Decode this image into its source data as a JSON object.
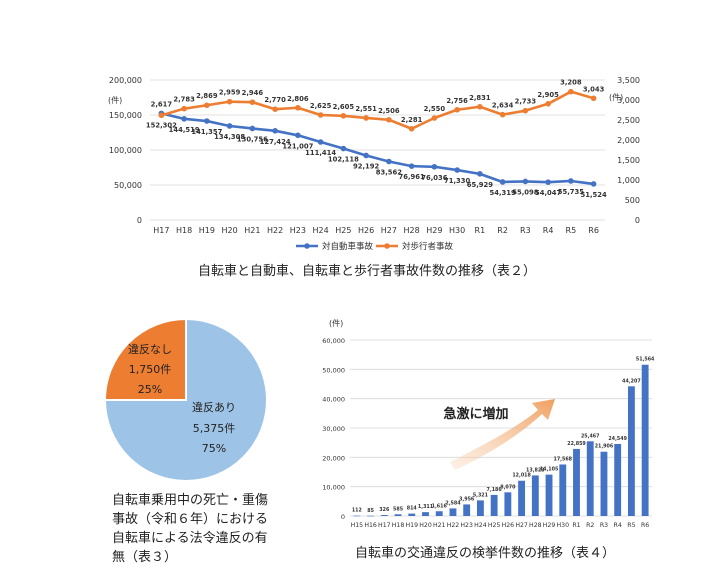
{
  "chart_data": [
    {
      "type": "line",
      "title": "自転車と自動車、自転車と歩行者事故件数の推移（表２）",
      "left_unit": "(件)",
      "right_unit": "(件)",
      "categories": [
        "H17",
        "H18",
        "H19",
        "H20",
        "H21",
        "H22",
        "H23",
        "H24",
        "H25",
        "H26",
        "H27",
        "H28",
        "H29",
        "H30",
        "R1",
        "R2",
        "R3",
        "R4",
        "R5",
        "R6"
      ],
      "left_ylim": [
        0,
        200000
      ],
      "left_ticks": [
        "0",
        "50,000",
        "100,000",
        "150,000",
        "200,000"
      ],
      "right_ylim": [
        0,
        3500
      ],
      "right_ticks": [
        "0",
        "500",
        "1,000",
        "1,500",
        "2,000",
        "2,500",
        "3,000",
        "3,500"
      ],
      "series": [
        {
          "name": "対自動車事故",
          "axis": "left",
          "color": "#4472c4",
          "values": [
            152302,
            144519,
            141357,
            134308,
            130756,
            127424,
            121007,
            111414,
            102118,
            92192,
            83562,
            76961,
            76036,
            71330,
            65929,
            54319,
            55098,
            54047,
            55735,
            51524
          ],
          "labels": [
            "152,302",
            "144,519",
            "141,357",
            "134,308",
            "130,756",
            "127,424",
            "121,007",
            "111,414",
            "102,118",
            "92,192",
            "83,562",
            "76,961",
            "76,036",
            "71,330",
            "65,929",
            "54,319",
            "55,098",
            "54,047",
            "55,735",
            "51,524"
          ]
        },
        {
          "name": "対歩行者事故",
          "axis": "right",
          "color": "#ed7d31",
          "values": [
            2617,
            2783,
            2869,
            2959,
            2946,
            2770,
            2806,
            2625,
            2605,
            2551,
            2506,
            2281,
            2550,
            2756,
            2831,
            2634,
            2733,
            2905,
            3208,
            3043
          ],
          "labels": [
            "2,617",
            "2,783",
            "2,869",
            "2,959",
            "2,946",
            "2,770",
            "2,806",
            "2,625",
            "2,605",
            "2,551",
            "2,506",
            "2,281",
            "2,550",
            "2,756",
            "2,831",
            "2,634",
            "2,733",
            "2,905",
            "3,208",
            "3,043"
          ]
        }
      ]
    },
    {
      "type": "pie",
      "title_lines": [
        "自転車乗用中の死亡・重傷",
        "事故（令和６年）における",
        "自転車による法令違反の有",
        "無（表３）"
      ],
      "slices": [
        {
          "label": "違反あり",
          "count": "5,375件",
          "percent": "75%",
          "value": 75,
          "color": "#9dc3e6"
        },
        {
          "label": "違反なし",
          "count": "1,750件",
          "percent": "25%",
          "value": 25,
          "color": "#ed7d31"
        }
      ]
    },
    {
      "type": "bar",
      "title": "自転車の交通違反の検挙件数の推移（表４）",
      "ylabel": "(件)",
      "annotation": "急激に増加",
      "ylim": [
        0,
        60000
      ],
      "ticks": [
        "0",
        "10,000",
        "20,000",
        "30,000",
        "40,000",
        "50,000",
        "60,000"
      ],
      "categories": [
        "H15",
        "H16",
        "H17",
        "H18",
        "H19",
        "H20",
        "H21",
        "H22",
        "H23",
        "H24",
        "H25",
        "H26",
        "H27",
        "H28",
        "H29",
        "H30",
        "R1",
        "R2",
        "R3",
        "R4",
        "R5",
        "R6"
      ],
      "values": [
        112,
        85,
        326,
        585,
        814,
        1311,
        1616,
        2584,
        3956,
        5321,
        7186,
        8070,
        12018,
        13823,
        14105,
        17568,
        22859,
        25467,
        21906,
        24549,
        44207,
        51564
      ],
      "labels": [
        "112",
        "85",
        "326",
        "585",
        "814",
        "1,311",
        "1,616",
        "2,584",
        "3,956",
        "5,321",
        "7,186",
        "8,070",
        "12,018",
        "13,823",
        "14,105",
        "17,568",
        "22,859",
        "25,467",
        "21,906",
        "24,549",
        "44,207",
        "51,564"
      ],
      "color": "#4472c4"
    }
  ]
}
